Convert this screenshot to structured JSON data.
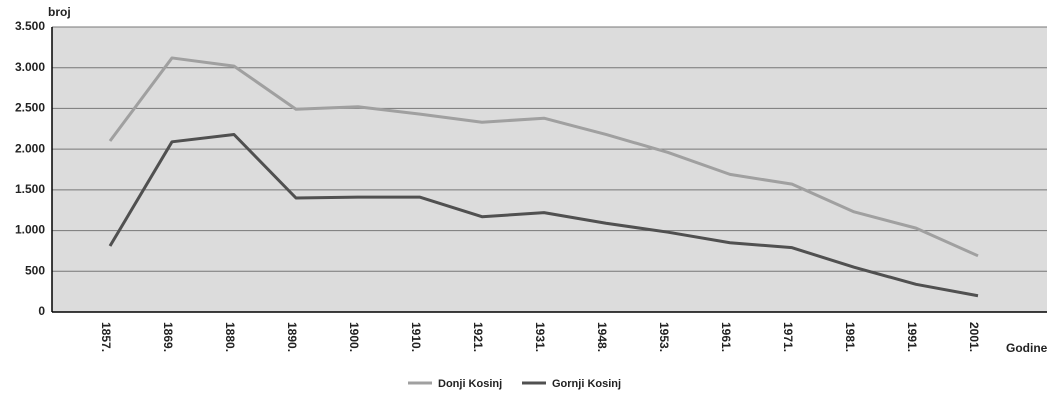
{
  "chart_data": {
    "type": "line",
    "y_label": "broj",
    "x_label": "Godine",
    "categories": [
      "1857.",
      "1869.",
      "1880.",
      "1890.",
      "1900.",
      "1910.",
      "1921.",
      "1931.",
      "1948.",
      "1953.",
      "1961.",
      "1971.",
      "1981.",
      "1991.",
      "2001."
    ],
    "series": [
      {
        "name": "Donji Kosinj",
        "color": "#a0a0a0",
        "values": [
          2100,
          3120,
          3020,
          2490,
          2520,
          2430,
          2330,
          2380,
          2180,
          1960,
          1690,
          1570,
          1230,
          1030,
          690
        ]
      },
      {
        "name": "Gornji Kosinj",
        "color": "#505050",
        "values": [
          810,
          2090,
          2180,
          1400,
          1410,
          1410,
          1170,
          1220,
          1090,
          980,
          850,
          790,
          550,
          340,
          200
        ]
      }
    ],
    "ylim": [
      0,
      3500
    ],
    "yticks": [
      0,
      {
        "value": 500,
        "label": "500"
      },
      {
        "value": 1000,
        "label": "1.000"
      },
      {
        "value": 1500,
        "label": "1.500"
      },
      {
        "value": 2000,
        "label": "2.000"
      },
      {
        "value": 2500,
        "label": "2.500"
      },
      {
        "value": 3000,
        "label": "3.000"
      },
      {
        "value": 3500,
        "label": "3.500"
      }
    ],
    "grid": true,
    "legend": "bottom"
  }
}
